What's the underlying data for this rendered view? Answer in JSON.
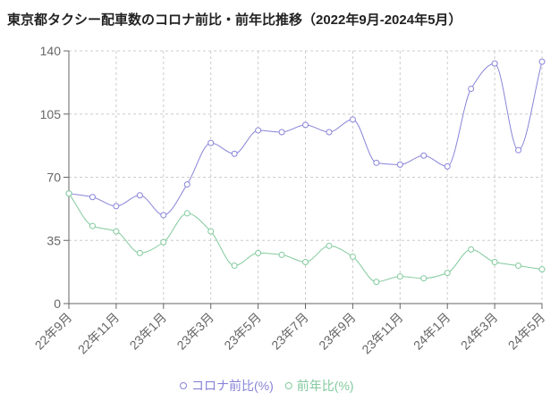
{
  "chart_data": {
    "type": "line",
    "title": "東京都タクシー配車数のコロナ前比・前年比推移（2022年9月-2024年5月）",
    "categories": [
      "22年9月",
      null,
      "22年11月",
      null,
      "23年1月",
      null,
      "23年3月",
      null,
      "23年5月",
      null,
      "23年7月",
      null,
      "23年9月",
      null,
      "23年11月",
      null,
      "24年1月",
      null,
      "24年3月",
      null,
      "24年5月"
    ],
    "series": [
      {
        "name": "コロナ前比(%)",
        "color": "#8884d8",
        "values": [
          61,
          59,
          54,
          60,
          49,
          66,
          89,
          83,
          96,
          95,
          99,
          95,
          102,
          78,
          77,
          82,
          76,
          119,
          133,
          85,
          134
        ]
      },
      {
        "name": "前年比(%)",
        "color": "#82ca9d",
        "values": [
          61,
          43,
          40,
          28,
          34,
          50,
          40,
          21,
          28,
          27,
          23,
          32,
          26,
          12,
          15,
          14,
          17,
          30,
          23,
          21,
          19
        ]
      }
    ],
    "ylim": [
      0,
      140
    ],
    "yticks": [
      0,
      35,
      70,
      105,
      140
    ],
    "grid": true,
    "legend": "bottom"
  }
}
